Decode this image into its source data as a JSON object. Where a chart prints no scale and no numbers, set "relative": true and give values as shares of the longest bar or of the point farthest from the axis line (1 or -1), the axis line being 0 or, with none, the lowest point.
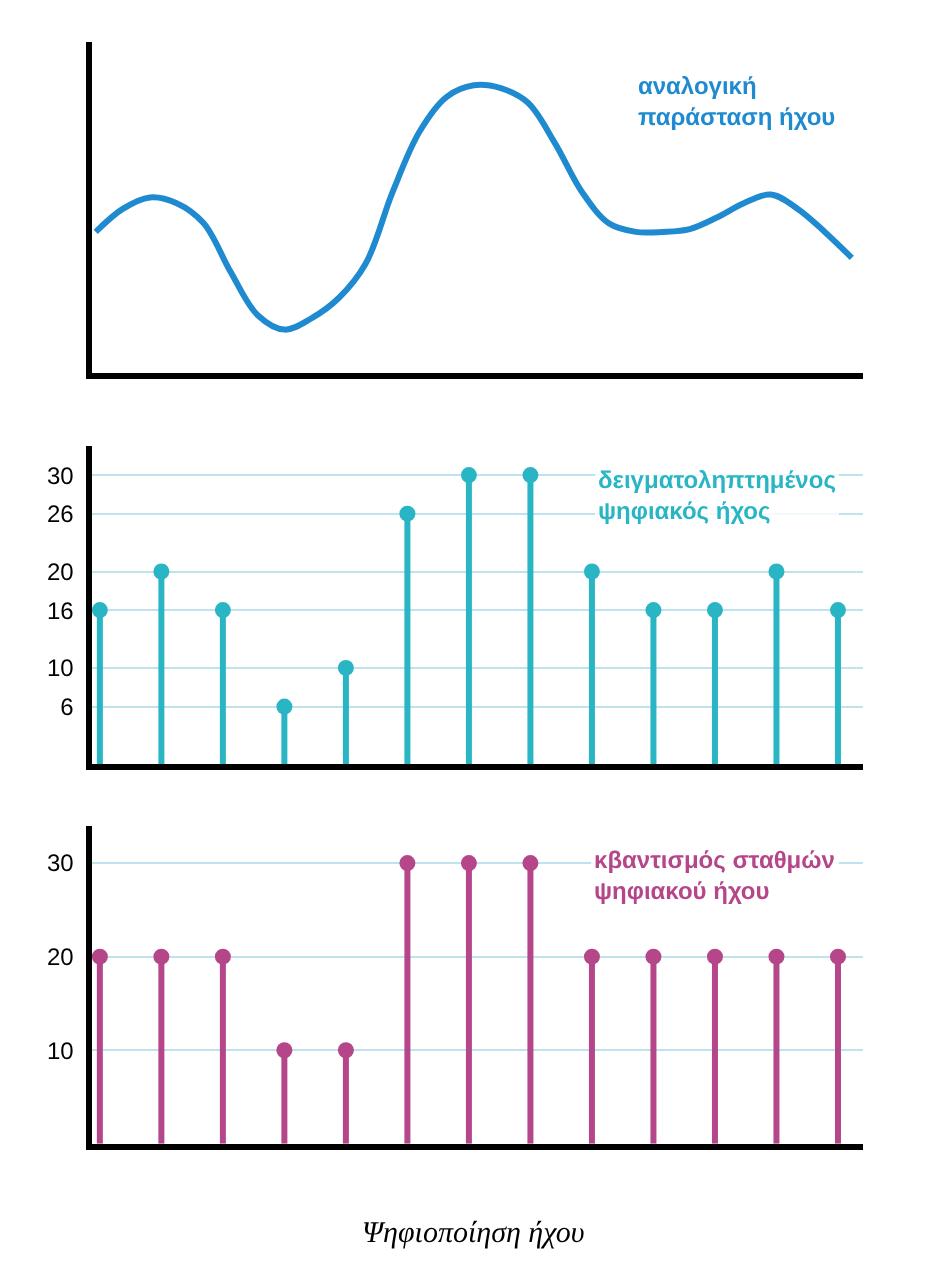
{
  "chart_data": [
    {
      "type": "line",
      "relative": true,
      "categories": [
        null,
        null,
        null,
        null,
        null,
        null,
        null,
        null,
        null,
        null,
        null,
        null,
        null,
        null,
        null,
        null,
        null,
        null,
        null,
        null,
        null,
        null,
        null,
        null,
        null,
        null,
        null,
        null,
        null
      ],
      "series": [
        {
          "name": "αναλογική παράσταση ήχου",
          "color": "#1f8ad0",
          "values": [
            0.49,
            0.57,
            0.61,
            0.59,
            0.52,
            0.35,
            0.2,
            0.15,
            0.19,
            0.26,
            0.38,
            0.63,
            0.84,
            0.96,
            1,
            0.99,
            0.94,
            0.8,
            0.63,
            0.52,
            0.49,
            0.49,
            0.5,
            0.54,
            0.59,
            0.62,
            0.57,
            0.49,
            0.4
          ]
        }
      ],
      "marker": "none",
      "line_style": "solid",
      "tick_labels": false
    },
    {
      "type": "lollipop",
      "categories": [
        null,
        null,
        null,
        null,
        null,
        null,
        null,
        null,
        null,
        null,
        null,
        null,
        null
      ],
      "series": [
        {
          "name": "δειγματοληπτημένος ψηφιακός ήχος",
          "color": "#2ab5c5",
          "values": [
            16,
            20,
            16,
            6,
            10,
            26,
            30,
            30,
            20,
            16,
            16,
            20,
            16
          ]
        }
      ],
      "ylim": [
        0,
        33
      ],
      "yticks": [
        6,
        10,
        16,
        20,
        26,
        30
      ],
      "grid": "y",
      "marker": "circle",
      "tick_labels": "y"
    },
    {
      "type": "lollipop",
      "categories": [
        null,
        null,
        null,
        null,
        null,
        null,
        null,
        null,
        null,
        null,
        null,
        null,
        null
      ],
      "series": [
        {
          "name": "κβαντισμός σταθμών ψηφιακού ήχου",
          "color": "#b5468a",
          "values": [
            20,
            20,
            20,
            10,
            10,
            30,
            30,
            30,
            20,
            20,
            20,
            20,
            20
          ]
        }
      ],
      "ylim": [
        0,
        34
      ],
      "yticks": [
        10,
        20,
        30
      ],
      "grid": "y",
      "marker": "circle",
      "tick_labels": "y",
      "annotations": [
        "Ψηφιοποίηση ήχου"
      ]
    }
  ]
}
